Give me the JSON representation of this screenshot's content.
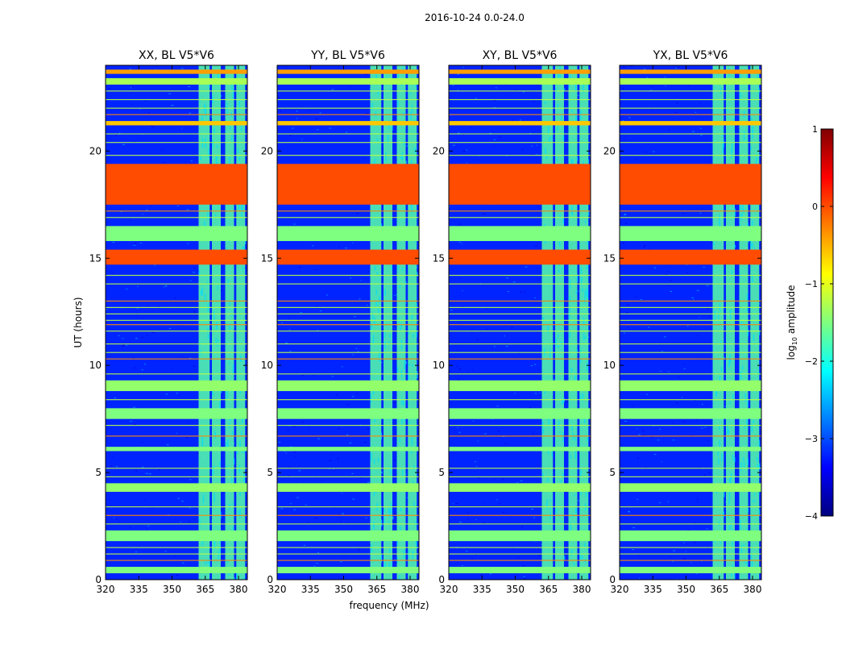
{
  "chart_data": {
    "type": "heatmap",
    "suptitle": "2016-10-24 0.0-24.0",
    "xlabel": "frequency (MHz)",
    "ylabel": "UT (hours)",
    "xlim": [
      320,
      384
    ],
    "ylim": [
      0,
      24
    ],
    "xticks": [
      320,
      335,
      350,
      365,
      380
    ],
    "yticks": [
      0,
      5,
      10,
      15,
      20
    ],
    "colorbar": {
      "label_prefix": "log",
      "label_sub": "10",
      "label_suffix": " amplitude",
      "range": [
        -4,
        1
      ],
      "ticks": [
        "1",
        "0",
        "−1",
        "−2",
        "−3",
        "−4"
      ],
      "tick_values": [
        1,
        0,
        -1,
        -2,
        -3,
        -4
      ],
      "stops": [
        "#00007f",
        "#0000ff",
        "#007fff",
        "#00ffff",
        "#7fff7f",
        "#ffff00",
        "#ff7f00",
        "#ff0000",
        "#7f0000"
      ]
    },
    "panels": [
      {
        "title": "XX, BL V5*V6",
        "pol": "XX"
      },
      {
        "title": "YY, BL V5*V6",
        "pol": "YY"
      },
      {
        "title": "XY, BL V5*V6",
        "pol": "XY"
      },
      {
        "title": "YX, BL V5*V6",
        "pol": "YX"
      }
    ],
    "background_level": -3.2,
    "rfi_channels_mhz": [
      [
        362,
        367
      ],
      [
        368,
        372
      ],
      [
        374,
        378
      ],
      [
        379,
        383
      ]
    ],
    "rfi_channel_level": -1.7,
    "flagged_time_bands": [
      {
        "start": 17.5,
        "end": 19.4,
        "level": 0.0
      },
      {
        "start": 14.7,
        "end": 15.4,
        "level": 0.0
      },
      {
        "start": 15.8,
        "end": 16.5,
        "level": -1.5
      },
      {
        "start": 7.5,
        "end": 8.0,
        "level": -1.5
      },
      {
        "start": 1.8,
        "end": 2.3,
        "level": -1.5
      },
      {
        "start": 4.1,
        "end": 4.5,
        "level": -1.4
      },
      {
        "start": 0.3,
        "end": 0.6,
        "level": -1.5
      },
      {
        "start": 23.1,
        "end": 23.4,
        "level": -1.3
      },
      {
        "start": 21.2,
        "end": 21.4,
        "level": -0.6
      },
      {
        "start": 23.6,
        "end": 23.8,
        "level": -0.4
      },
      {
        "start": 8.8,
        "end": 9.3,
        "level": -1.4
      },
      {
        "start": 6.0,
        "end": 6.2,
        "level": -1.5
      }
    ],
    "rfi_time_lines_hours": [
      0.9,
      1.2,
      1.5,
      2.6,
      3.0,
      3.4,
      4.8,
      5.2,
      6.7,
      7.2,
      8.4,
      9.6,
      10.3,
      10.6,
      11.0,
      11.6,
      11.9,
      12.1,
      12.4,
      12.7,
      13.0,
      13.8,
      14.2,
      16.9,
      17.2,
      19.8,
      20.4,
      20.8,
      21.7,
      22.0,
      22.4,
      22.8
    ]
  }
}
